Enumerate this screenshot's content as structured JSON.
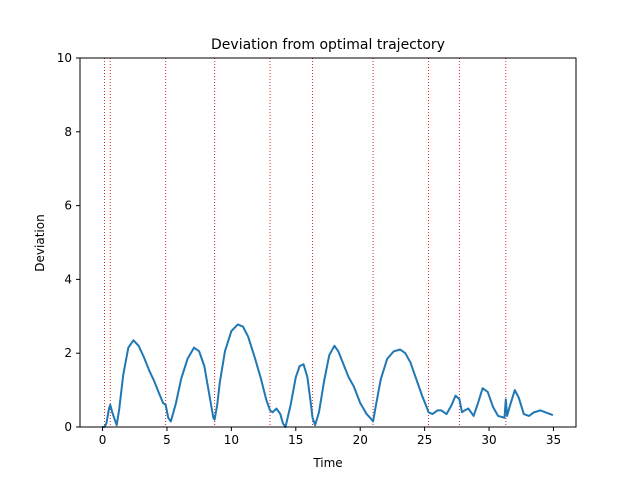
{
  "chart_data": {
    "type": "line",
    "title": "Deviation from optimal trajectory",
    "xlabel": "Time",
    "ylabel": "Deviation",
    "xlim": [
      -1.75,
      36.75
    ],
    "ylim": [
      0,
      10
    ],
    "xticks": [
      0,
      5,
      10,
      15,
      20,
      25,
      30,
      35
    ],
    "yticks": [
      0,
      2,
      4,
      6,
      8,
      10
    ],
    "grid": false,
    "line_color": "#1f77b4",
    "vline_color": "#d62728",
    "vlines": [
      0.15,
      0.6,
      4.9,
      8.7,
      13.0,
      16.3,
      21.0,
      25.3,
      27.7,
      31.3
    ],
    "series": [
      {
        "x": [
          0.0,
          0.15,
          0.3,
          0.5,
          0.6,
          0.75,
          0.9,
          1.1,
          1.3,
          1.6,
          2.0,
          2.4,
          2.8,
          3.2,
          3.6,
          4.0,
          4.4,
          4.7,
          4.9,
          5.1,
          5.3,
          5.7,
          6.1,
          6.6,
          7.1,
          7.5,
          7.9,
          8.3,
          8.6,
          8.7,
          8.9,
          9.1,
          9.5,
          10.0,
          10.5,
          10.9,
          11.3,
          11.8,
          12.3,
          12.7,
          13.0,
          13.2,
          13.5,
          13.8,
          14.0,
          14.2,
          14.6,
          15.0,
          15.3,
          15.6,
          15.9,
          16.2,
          16.3,
          16.5,
          16.8,
          17.2,
          17.6,
          18.0,
          18.3,
          18.7,
          19.1,
          19.5,
          20.0,
          20.5,
          20.9,
          21.0,
          21.2,
          21.6,
          22.1,
          22.6,
          23.1,
          23.5,
          23.9,
          24.3,
          24.8,
          25.2,
          25.3,
          25.6,
          26.0,
          26.3,
          26.7,
          27.1,
          27.4,
          27.7,
          27.9,
          28.1,
          28.4,
          28.8,
          29.1,
          29.5,
          29.9,
          30.3,
          30.7,
          31.2,
          31.3,
          31.4,
          31.6,
          32.0,
          32.3,
          32.7,
          33.1,
          33.5,
          34.0,
          34.5,
          34.9
        ],
        "y": [
          0.0,
          0.0,
          0.1,
          0.5,
          0.6,
          0.4,
          0.25,
          0.05,
          0.5,
          1.4,
          2.15,
          2.35,
          2.2,
          1.9,
          1.55,
          1.25,
          0.9,
          0.65,
          0.6,
          0.25,
          0.15,
          0.65,
          1.3,
          1.85,
          2.15,
          2.05,
          1.65,
          0.85,
          0.25,
          0.2,
          0.6,
          1.2,
          2.05,
          2.6,
          2.78,
          2.72,
          2.45,
          1.9,
          1.3,
          0.75,
          0.45,
          0.4,
          0.5,
          0.35,
          0.1,
          0.0,
          0.6,
          1.35,
          1.65,
          1.7,
          1.35,
          0.55,
          0.25,
          0.05,
          0.4,
          1.25,
          1.95,
          2.2,
          2.05,
          1.7,
          1.35,
          1.1,
          0.65,
          0.35,
          0.2,
          0.15,
          0.55,
          1.3,
          1.85,
          2.05,
          2.1,
          2.0,
          1.75,
          1.35,
          0.85,
          0.5,
          0.4,
          0.35,
          0.45,
          0.45,
          0.35,
          0.6,
          0.85,
          0.75,
          0.4,
          0.45,
          0.5,
          0.3,
          0.6,
          1.05,
          0.95,
          0.55,
          0.3,
          0.25,
          0.75,
          0.3,
          0.55,
          1.0,
          0.8,
          0.35,
          0.3,
          0.4,
          0.45,
          0.38,
          0.33
        ]
      }
    ]
  }
}
